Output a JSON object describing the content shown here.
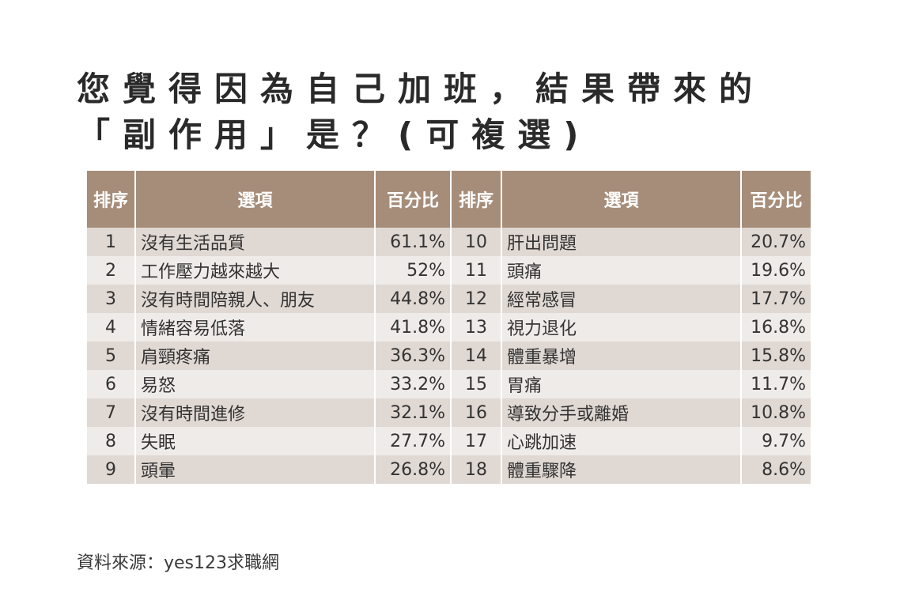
{
  "title": {
    "line1": "您覺得因為自己加班，結果帶來的",
    "line2": "「副作用」是？(可複選)"
  },
  "table": {
    "headers": [
      "排序",
      "選項",
      "百分比",
      "排序",
      "選項",
      "百分比"
    ],
    "rows": [
      {
        "rank_a": "1",
        "item_a": "沒有生活品質",
        "pct_a": "61.1%",
        "rank_b": "10",
        "item_b": "肝出問題",
        "pct_b": "20.7%"
      },
      {
        "rank_a": "2",
        "item_a": "工作壓力越來越大",
        "pct_a": "52%",
        "rank_b": "11",
        "item_b": "頭痛",
        "pct_b": "19.6%"
      },
      {
        "rank_a": "3",
        "item_a": "沒有時間陪親人、朋友",
        "pct_a": "44.8%",
        "rank_b": "12",
        "item_b": "經常感冒",
        "pct_b": "17.7%"
      },
      {
        "rank_a": "4",
        "item_a": "情緒容易低落",
        "pct_a": "41.8%",
        "rank_b": "13",
        "item_b": "視力退化",
        "pct_b": "16.8%"
      },
      {
        "rank_a": "5",
        "item_a": "肩頸疼痛",
        "pct_a": "36.3%",
        "rank_b": "14",
        "item_b": "體重暴增",
        "pct_b": "15.8%"
      },
      {
        "rank_a": "6",
        "item_a": "易怒",
        "pct_a": "33.2%",
        "rank_b": "15",
        "item_b": "胃痛",
        "pct_b": "11.7%"
      },
      {
        "rank_a": "7",
        "item_a": "沒有時間進修",
        "pct_a": "32.1%",
        "rank_b": "16",
        "item_b": "導致分手或離婚",
        "pct_b": "10.8%"
      },
      {
        "rank_a": "8",
        "item_a": "失眠",
        "pct_a": "27.7%",
        "rank_b": "17",
        "item_b": "心跳加速",
        "pct_b": "9.7%"
      },
      {
        "rank_a": "9",
        "item_a": "頭暈",
        "pct_a": "26.8%",
        "rank_b": "18",
        "item_b": "體重驟降",
        "pct_b": "8.6%"
      }
    ]
  },
  "source": "資料來源：yes123求職網",
  "colors": {
    "header_bg": "#a68d79",
    "row_odd": "#e0d8d3",
    "row_even": "#efebe9"
  }
}
